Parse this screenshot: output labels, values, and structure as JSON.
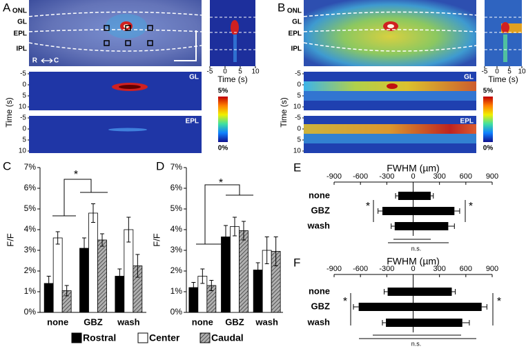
{
  "panels": [
    {
      "label": "A",
      "layers": [
        "ONL",
        "GL",
        "EPL",
        "IPL"
      ],
      "orientation": [
        "R",
        "C"
      ],
      "inset_xticks": [
        -5,
        0,
        5,
        10
      ],
      "inset_xlabel": "Time (s)",
      "heatmaps": [
        "GL",
        "EPL"
      ],
      "heatmap_yticks": [
        -5,
        0,
        5,
        10
      ],
      "heatmap_ylabel": "Time (s)",
      "colorbar": [
        "5%",
        "0%"
      ]
    },
    {
      "label": "B",
      "layers": [
        "ONL",
        "GL",
        "EPL",
        "IPL"
      ],
      "inset_xticks": [
        -5,
        0,
        5,
        10
      ],
      "inset_xlabel": "Time (s)",
      "heatmaps": [
        "GL",
        "EPL"
      ],
      "heatmap_yticks": [
        -5,
        0,
        5,
        10
      ],
      "heatmap_ylabel": "Time (s)",
      "colorbar": [
        "5%",
        "0%"
      ]
    }
  ],
  "chart_data": [
    {
      "type": "bar",
      "label": "C",
      "ylabel": "F/F",
      "categories": [
        "none",
        "GBZ",
        "wash"
      ],
      "series": [
        {
          "name": "Rostral",
          "color": "#000000",
          "values": [
            1.4,
            3.1,
            1.75
          ],
          "errors": [
            0.35,
            0.5,
            0.35
          ]
        },
        {
          "name": "Center",
          "color": "#ffffff",
          "values": [
            3.6,
            4.8,
            4.0
          ],
          "errors": [
            0.3,
            0.45,
            0.6
          ]
        },
        {
          "name": "Caudal",
          "color": "#9a9a9a",
          "hatch": true,
          "values": [
            1.05,
            3.5,
            2.25
          ],
          "errors": [
            0.25,
            0.3,
            0.55
          ]
        }
      ],
      "ylim": [
        0,
        7
      ],
      "yticks": [
        {
          "value": 0,
          "label": "0%"
        },
        {
          "value": 1,
          "label": "1%"
        },
        {
          "value": 2,
          "label": "2%"
        },
        {
          "value": 3,
          "label": "3%"
        },
        {
          "value": 4,
          "label": "4%"
        },
        {
          "value": 5,
          "label": "5%"
        },
        {
          "value": 6,
          "label": "6%"
        },
        {
          "value": 7,
          "label": "7%"
        }
      ],
      "annotations": [
        "*"
      ]
    },
    {
      "type": "bar",
      "label": "D",
      "ylabel": "F/F",
      "categories": [
        "none",
        "GBZ",
        "wash"
      ],
      "series": [
        {
          "color": "#000000",
          "values": [
            1.2,
            3.65,
            2.05
          ],
          "errors": [
            0.25,
            0.55,
            0.35
          ]
        },
        {
          "color": "#ffffff",
          "values": [
            1.75,
            4.15,
            3.0
          ],
          "errors": [
            0.35,
            0.45,
            0.65
          ]
        },
        {
          "color": "#9a9a9a",
          "hatch": true,
          "values": [
            1.3,
            3.95,
            2.95
          ],
          "errors": [
            0.25,
            0.45,
            0.7
          ]
        }
      ],
      "ylim": [
        0,
        7
      ],
      "yticks": [
        {
          "value": 0,
          "label": "0%"
        },
        {
          "value": 1,
          "label": "1%"
        },
        {
          "value": 2,
          "label": "2%"
        },
        {
          "value": 3,
          "label": "3%"
        },
        {
          "value": 4,
          "label": "4%"
        },
        {
          "value": 5,
          "label": "5%"
        },
        {
          "value": 6,
          "label": "6%"
        },
        {
          "value": 7,
          "label": "7%"
        }
      ],
      "annotations": [
        "*"
      ]
    },
    {
      "type": "floating-bar",
      "label": "E",
      "xlabel": "FWHM (µm)",
      "categories": [
        "none",
        "GBZ",
        "wash"
      ],
      "color": "#000000",
      "starts": [
        -170,
        -350,
        -210
      ],
      "ends": [
        200,
        470,
        400
      ],
      "start_errors": [
        30,
        50,
        40
      ],
      "end_errors": [
        30,
        60,
        70
      ],
      "xlim": [
        -900,
        900
      ],
      "xticks": [
        -900,
        -600,
        -300,
        0,
        300,
        600,
        900
      ],
      "annotations": [
        "*",
        "*",
        "n.s."
      ]
    },
    {
      "type": "floating-bar",
      "label": "F",
      "xlabel": "FWHM (µm)",
      "categories": [
        "none",
        "GBZ",
        "wash"
      ],
      "color": "#000000",
      "starts": [
        -290,
        -620,
        -310
      ],
      "ends": [
        440,
        780,
        560
      ],
      "start_errors": [
        40,
        60,
        40
      ],
      "end_errors": [
        40,
        60,
        80
      ],
      "xlim": [
        -900,
        900
      ],
      "xticks": [
        -900,
        -600,
        -300,
        0,
        300,
        600,
        900
      ],
      "annotations": [
        "*",
        "*",
        "n.s."
      ]
    }
  ]
}
